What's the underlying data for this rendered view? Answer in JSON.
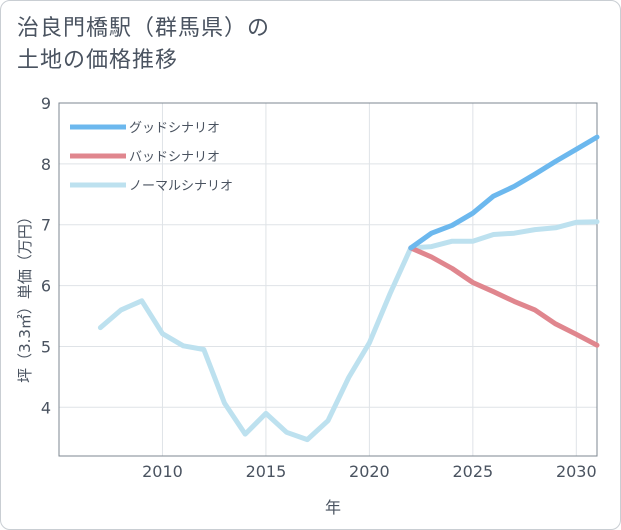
{
  "title": {
    "line1": "治良門橋駅（群馬県）の",
    "line2": "土地の価格推移"
  },
  "chart_data": {
    "type": "line",
    "title": "治良門橋駅（群馬県）の土地の価格推移",
    "xlabel": "年",
    "ylabel": "坪（3.3㎡）単価（万円）",
    "xlim": [
      2005,
      2031
    ],
    "ylim": [
      3.2,
      9
    ],
    "x_ticks": [
      2010,
      2015,
      2020,
      2025,
      2030
    ],
    "y_ticks": [
      4,
      5,
      6,
      7,
      8,
      9
    ],
    "grid": true,
    "legend_position": "top-left",
    "series": [
      {
        "name": "グッドシナリオ",
        "color": "#6cb8ee",
        "x": [
          2022,
          2023,
          2024,
          2025,
          2026,
          2027,
          2028,
          2029,
          2030,
          2031
        ],
        "y": [
          6.62,
          6.86,
          6.99,
          7.19,
          7.47,
          7.63,
          7.83,
          8.04,
          8.24,
          8.44
        ]
      },
      {
        "name": "バッドシナリオ",
        "color": "#e0868e",
        "x": [
          2022,
          2023,
          2024,
          2025,
          2026,
          2027,
          2028,
          2029,
          2030,
          2031
        ],
        "y": [
          6.62,
          6.47,
          6.28,
          6.05,
          5.9,
          5.74,
          5.6,
          5.37,
          5.2,
          5.02
        ]
      },
      {
        "name": "ノーマルシナリオ",
        "color": "#bde1ef",
        "x": [
          2007,
          2008,
          2009,
          2010,
          2011,
          2012,
          2013,
          2014,
          2015,
          2016,
          2017,
          2018,
          2019,
          2020,
          2021,
          2022,
          2023,
          2024,
          2025,
          2026,
          2027,
          2028,
          2029,
          2030,
          2031
        ],
        "y": [
          5.31,
          5.6,
          5.75,
          5.21,
          5.01,
          4.95,
          4.07,
          3.56,
          3.9,
          3.59,
          3.47,
          3.78,
          4.49,
          5.06,
          5.87,
          6.62,
          6.64,
          6.73,
          6.73,
          6.84,
          6.86,
          6.92,
          6.95,
          7.04,
          7.05
        ]
      }
    ]
  }
}
